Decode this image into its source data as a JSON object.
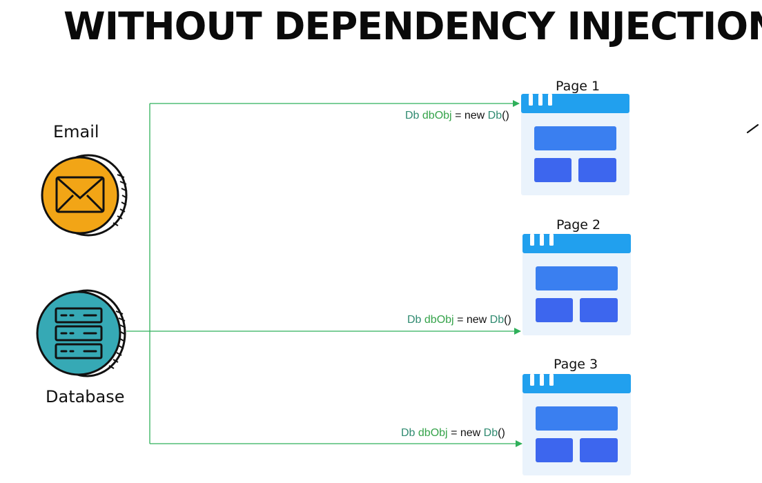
{
  "title": "WITHOUT DEPENDENCY INJECTION",
  "services": [
    {
      "label": "Email",
      "icon": "email-icon",
      "color": "#f2a516"
    },
    {
      "label": "Database",
      "icon": "database-icon",
      "color": "#36a9b5"
    }
  ],
  "pages": [
    {
      "label": "Page 1",
      "icon": "page-window-icon"
    },
    {
      "label": "Page 2",
      "icon": "page-window-icon"
    },
    {
      "label": "Page 3",
      "icon": "page-window-icon"
    }
  ],
  "code": {
    "type": "Db",
    "var": "dbObj",
    "equals": "=",
    "new_kw": "new",
    "ctor": "Db",
    "parens": "()"
  },
  "colors": {
    "arrow": "#2fb05a",
    "window_header": "#21a0ee",
    "window_block": "#3a7ff0",
    "window_body": "#eaf3fc"
  }
}
